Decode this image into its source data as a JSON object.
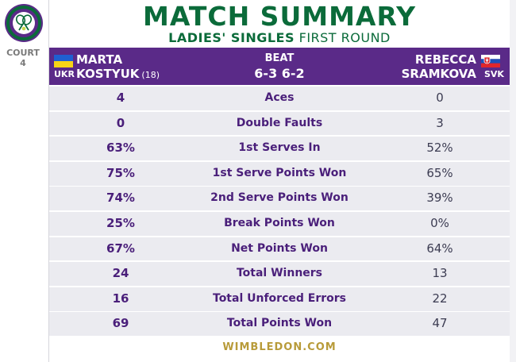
{
  "court": {
    "label": "COURT",
    "number": "4"
  },
  "title": "MATCH SUMMARY",
  "subtitle": {
    "event": "LADIES' SINGLES",
    "round": "FIRST ROUND"
  },
  "player1": {
    "first": "MARTA",
    "last": "KOSTYUK",
    "seed": "(18)",
    "country": "UKR"
  },
  "player2": {
    "first": "REBECCA",
    "last": "SRAMKOVA",
    "country": "SVK"
  },
  "result": {
    "word": "BEAT",
    "score": "6-3 6-2"
  },
  "stats": [
    {
      "label": "Aces",
      "p1": "4",
      "p2": "0"
    },
    {
      "label": "Double Faults",
      "p1": "0",
      "p2": "3"
    },
    {
      "label": "1st Serves In",
      "p1": "63%",
      "p2": "52%"
    },
    {
      "label": "1st Serve Points Won",
      "p1": "75%",
      "p2": "65%"
    },
    {
      "label": "2nd Serve Points Won",
      "p1": "74%",
      "p2": "39%"
    },
    {
      "label": "Break Points Won",
      "p1": "25%",
      "p2": "0%"
    },
    {
      "label": "Net Points Won",
      "p1": "67%",
      "p2": "64%"
    },
    {
      "label": "Total Winners",
      "p1": "24",
      "p2": "13"
    },
    {
      "label": "Total Unforced Errors",
      "p1": "16",
      "p2": "22"
    },
    {
      "label": "Total Points Won",
      "p1": "69",
      "p2": "47"
    }
  ],
  "footer": "WIMBLEDON.COM",
  "colors": {
    "purple": "#5a2a88",
    "green": "#0b6b3a",
    "gold": "#b89b3a"
  },
  "icons": {
    "logo": "wimbledon-logo-icon",
    "flag_left": "ukraine-flag-icon",
    "flag_right": "slovakia-flag-icon"
  }
}
